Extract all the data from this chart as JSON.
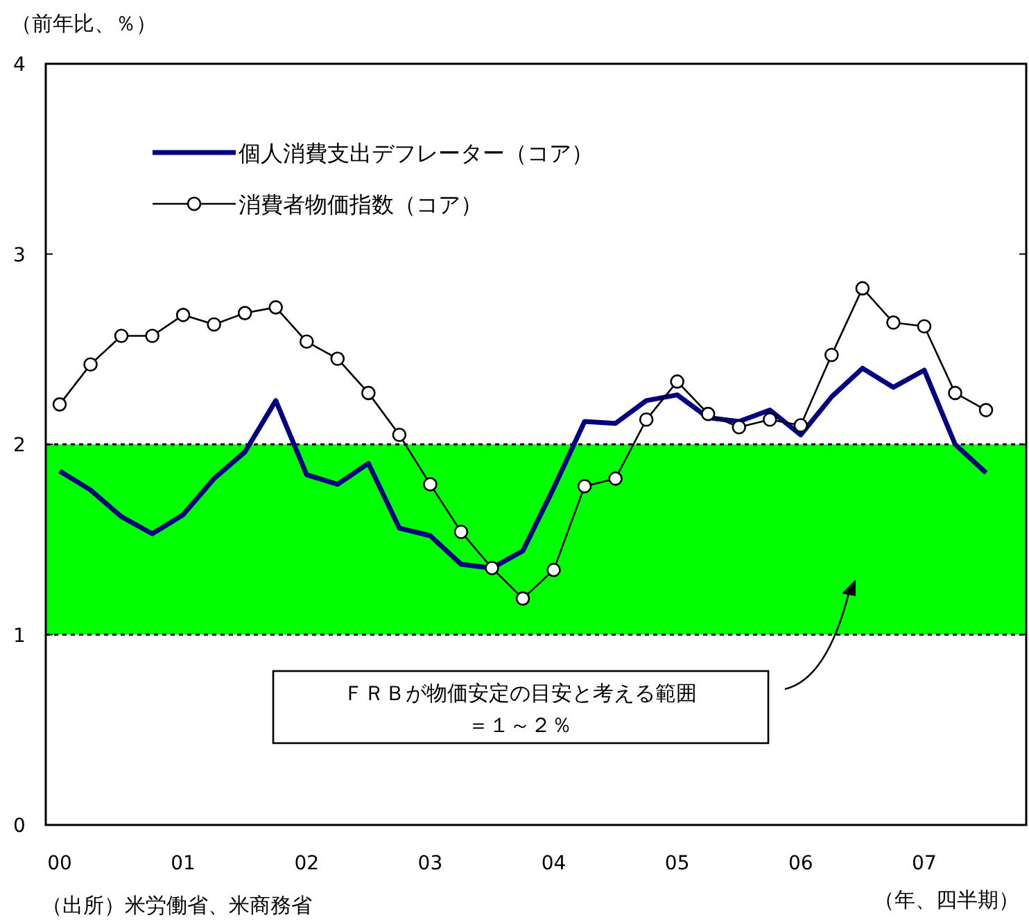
{
  "chart_data": {
    "type": "line",
    "ylabel": "（前年比、％）",
    "xlabel": "（年、四半期）",
    "categories": [
      "00",
      null,
      null,
      null,
      "01",
      null,
      null,
      null,
      "02",
      null,
      null,
      null,
      "03",
      null,
      null,
      null,
      "04",
      null,
      null,
      null,
      "05",
      null,
      null,
      null,
      "06",
      null,
      null,
      null,
      "07",
      null,
      null
    ],
    "series": [
      {
        "name": "個人消費支出デフレーター（コア）",
        "color": "#000080",
        "marker": "none",
        "values": [
          1.86,
          1.76,
          1.62,
          1.53,
          1.63,
          1.82,
          1.96,
          2.23,
          1.84,
          1.79,
          1.9,
          1.56,
          1.52,
          1.37,
          1.35,
          1.44,
          1.77,
          2.12,
          2.11,
          2.23,
          2.26,
          2.14,
          2.12,
          2.18,
          2.05,
          2.25,
          2.4,
          2.3,
          2.39,
          2.0,
          1.85
        ]
      },
      {
        "name": "消費者物価指数（コア）",
        "color": "#000000",
        "marker": "circle",
        "values": [
          2.21,
          2.42,
          2.57,
          2.57,
          2.68,
          2.63,
          2.69,
          2.72,
          2.54,
          2.45,
          2.27,
          2.05,
          1.79,
          1.54,
          1.35,
          1.19,
          1.34,
          1.78,
          1.82,
          2.13,
          2.33,
          2.16,
          2.09,
          2.13,
          2.1,
          2.47,
          2.82,
          2.64,
          2.62,
          2.27,
          2.18
        ]
      }
    ],
    "ylim": [
      0,
      4
    ],
    "yticks": [
      0,
      1,
      2,
      3,
      4
    ],
    "grid": false,
    "legend": "top left",
    "line_style": "solid",
    "bands": [
      {
        "axis": "y",
        "from": 1,
        "to": 2,
        "color": "#00ff00",
        "label": "ＦＲＢが物価安定の目安と考える範囲＝１～２％"
      }
    ],
    "ref_lines": [
      {
        "axis": "y",
        "value": 2,
        "line_style": "dotted"
      },
      {
        "axis": "y",
        "value": 1,
        "line_style": "dotted"
      }
    ],
    "annotations": [
      "（出所）米労働省、米商務省"
    ]
  }
}
